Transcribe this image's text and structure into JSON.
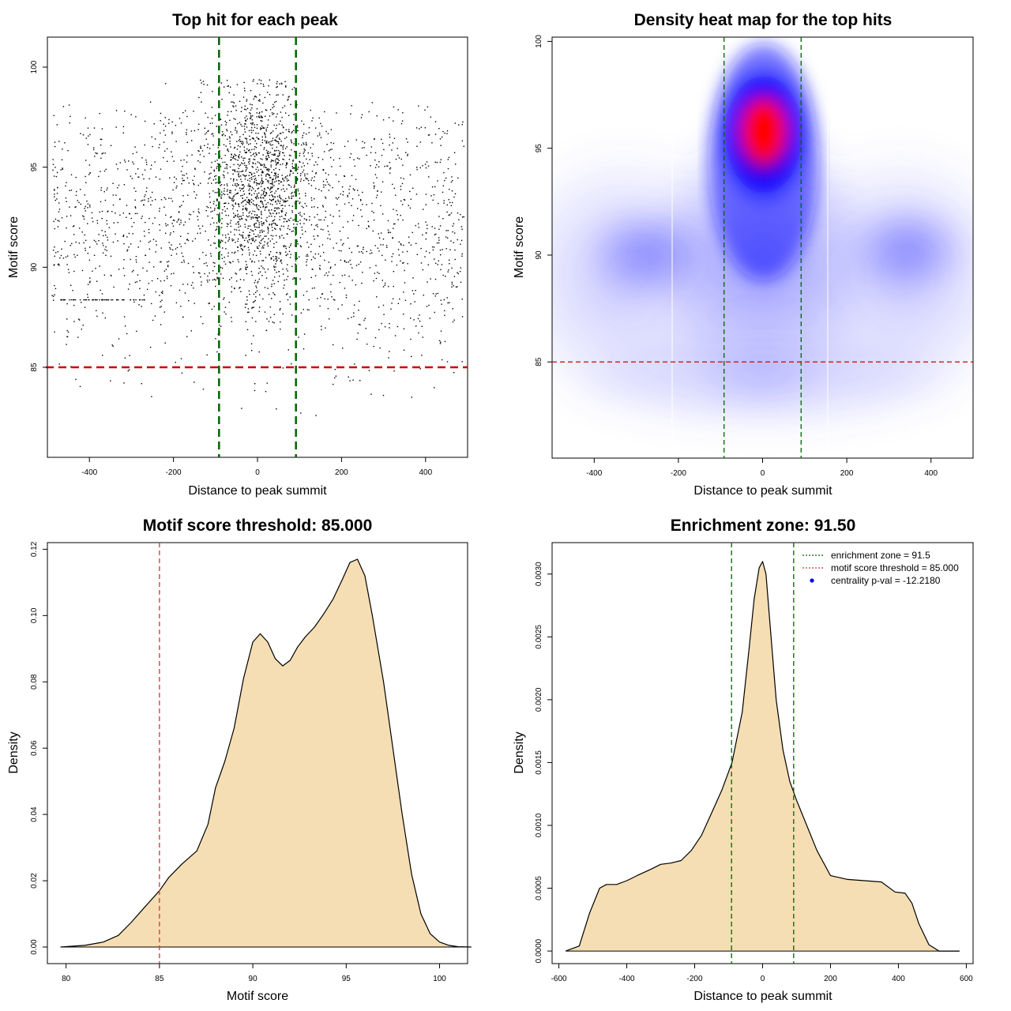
{
  "chart_data": [
    {
      "type": "scatter",
      "title": "Top hit for each peak",
      "xlabel": "Distance to peak summit",
      "ylabel": "Motif score",
      "xlim": [
        -500,
        500
      ],
      "ylim": [
        80.5,
        101.5
      ],
      "xticks": [
        -400,
        -200,
        0,
        200,
        400
      ],
      "yticks": [
        85,
        90,
        95,
        100
      ],
      "points_note_values": {
        "center_peak": [
          0,
          95.8
        ],
        "score_range": [
          81,
          99.5
        ],
        "distance_range": [
          -500,
          500
        ]
      },
      "enrichment_zone": [
        -91.5,
        91.5
      ],
      "threshold": 85,
      "colors": {
        "points": "#000000",
        "zone": "#006400",
        "threshold": "#cc0000"
      }
    },
    {
      "type": "heatmap",
      "title": "Density heat map for the top hits",
      "xlabel": "Distance to peak summit",
      "ylabel": "Motif score",
      "xlim": [
        -500,
        500
      ],
      "ylim": [
        80.5,
        100.2
      ],
      "xticks": [
        -400,
        -200,
        0,
        200,
        400
      ],
      "yticks": [
        85,
        90,
        95,
        100
      ],
      "hotspot": [
        5,
        95.8
      ],
      "enrichment_zone": [
        -91.5,
        91.5
      ],
      "threshold": 85,
      "colors": {
        "low": "#ffffff",
        "mid": "#0000ff",
        "high": "#ff0000",
        "zone": "#006400",
        "threshold": "#cc0000"
      }
    },
    {
      "type": "area",
      "title": "Motif score threshold: 85.000",
      "xlabel": "Motif score",
      "ylabel": "Density",
      "xlim": [
        79,
        101.5
      ],
      "ylim": [
        -0.005,
        0.122
      ],
      "xticks": [
        80,
        85,
        90,
        95,
        100
      ],
      "yticks": [
        0.0,
        0.02,
        0.04,
        0.06,
        0.08,
        0.1,
        0.12
      ],
      "x": [
        79.7,
        81,
        82,
        82.8,
        83.5,
        84.2,
        85,
        85.5,
        86.2,
        87,
        87.6,
        88,
        88.5,
        89,
        89.5,
        90,
        90.4,
        90.8,
        91.2,
        91.6,
        92,
        92.4,
        92.8,
        93.3,
        93.8,
        94.3,
        94.8,
        95.2,
        95.6,
        96,
        96.4,
        97,
        97.5,
        98,
        98.5,
        99,
        99.5,
        100,
        100.5,
        101,
        101.7
      ],
      "y": [
        0,
        0.0005,
        0.0015,
        0.0035,
        0.0075,
        0.012,
        0.017,
        0.021,
        0.025,
        0.029,
        0.037,
        0.048,
        0.056,
        0.066,
        0.081,
        0.092,
        0.0945,
        0.092,
        0.087,
        0.0848,
        0.0865,
        0.0905,
        0.0935,
        0.0965,
        0.1005,
        0.105,
        0.111,
        0.116,
        0.117,
        0.112,
        0.1,
        0.08,
        0.06,
        0.04,
        0.022,
        0.01,
        0.004,
        0.0015,
        0.0005,
        0.0001,
        0
      ],
      "threshold": 85,
      "colors": {
        "fill": "#f5deb3",
        "line": "#000000",
        "threshold": "#e03030"
      }
    },
    {
      "type": "area",
      "title": "Enrichment zone: 91.50",
      "xlabel": "Distance to peak summit",
      "ylabel": "Density",
      "xlim": [
        -620,
        620
      ],
      "ylim": [
        -0.0001,
        0.00325
      ],
      "xticks": [
        -600,
        -400,
        -200,
        0,
        200,
        400,
        600
      ],
      "yticks": [
        0.0,
        0.0005,
        0.001,
        0.0015,
        0.002,
        0.0025,
        0.003
      ],
      "ytick_labels": [
        "0.0000",
        "0.0005",
        "0.0010",
        "0.0015",
        "0.0020",
        "0.0025",
        "0.0030"
      ],
      "x": [
        -580,
        -540,
        -510,
        -480,
        -460,
        -430,
        -400,
        -370,
        -330,
        -300,
        -270,
        -240,
        -210,
        -180,
        -150,
        -120,
        -90,
        -60,
        -40,
        -25,
        -10,
        0,
        10,
        25,
        40,
        60,
        80,
        100,
        130,
        160,
        200,
        250,
        300,
        350,
        390,
        420,
        440,
        460,
        490,
        520,
        550,
        580
      ],
      "y": [
        0,
        4e-05,
        0.0003,
        0.0005,
        0.00053,
        0.00053,
        0.00056,
        0.0006,
        0.00065,
        0.00069,
        0.0007,
        0.00072,
        0.0008,
        0.00092,
        0.0011,
        0.00128,
        0.0015,
        0.0019,
        0.0024,
        0.0028,
        0.00305,
        0.0031,
        0.003,
        0.0025,
        0.002,
        0.0016,
        0.00135,
        0.0012,
        0.001,
        0.0008,
        0.0006,
        0.00057,
        0.00056,
        0.00055,
        0.00047,
        0.00046,
        0.00038,
        0.00022,
        5e-05,
        0,
        0,
        0
      ],
      "enrichment_zone": [
        -91.5,
        91.5
      ],
      "legend": [
        {
          "label": "enrichment zone = 91.5",
          "color": "#006400",
          "style": "dotted"
        },
        {
          "label": "motif score threshold = 85.000",
          "color": "#e03030",
          "style": "dotted"
        },
        {
          "label": "centrality p-val = -12.2180",
          "color": "#0000ff",
          "style": "point"
        }
      ],
      "legend_position": "top-right",
      "colors": {
        "fill": "#f5deb3",
        "line": "#000000",
        "zone": "#006400"
      }
    }
  ]
}
